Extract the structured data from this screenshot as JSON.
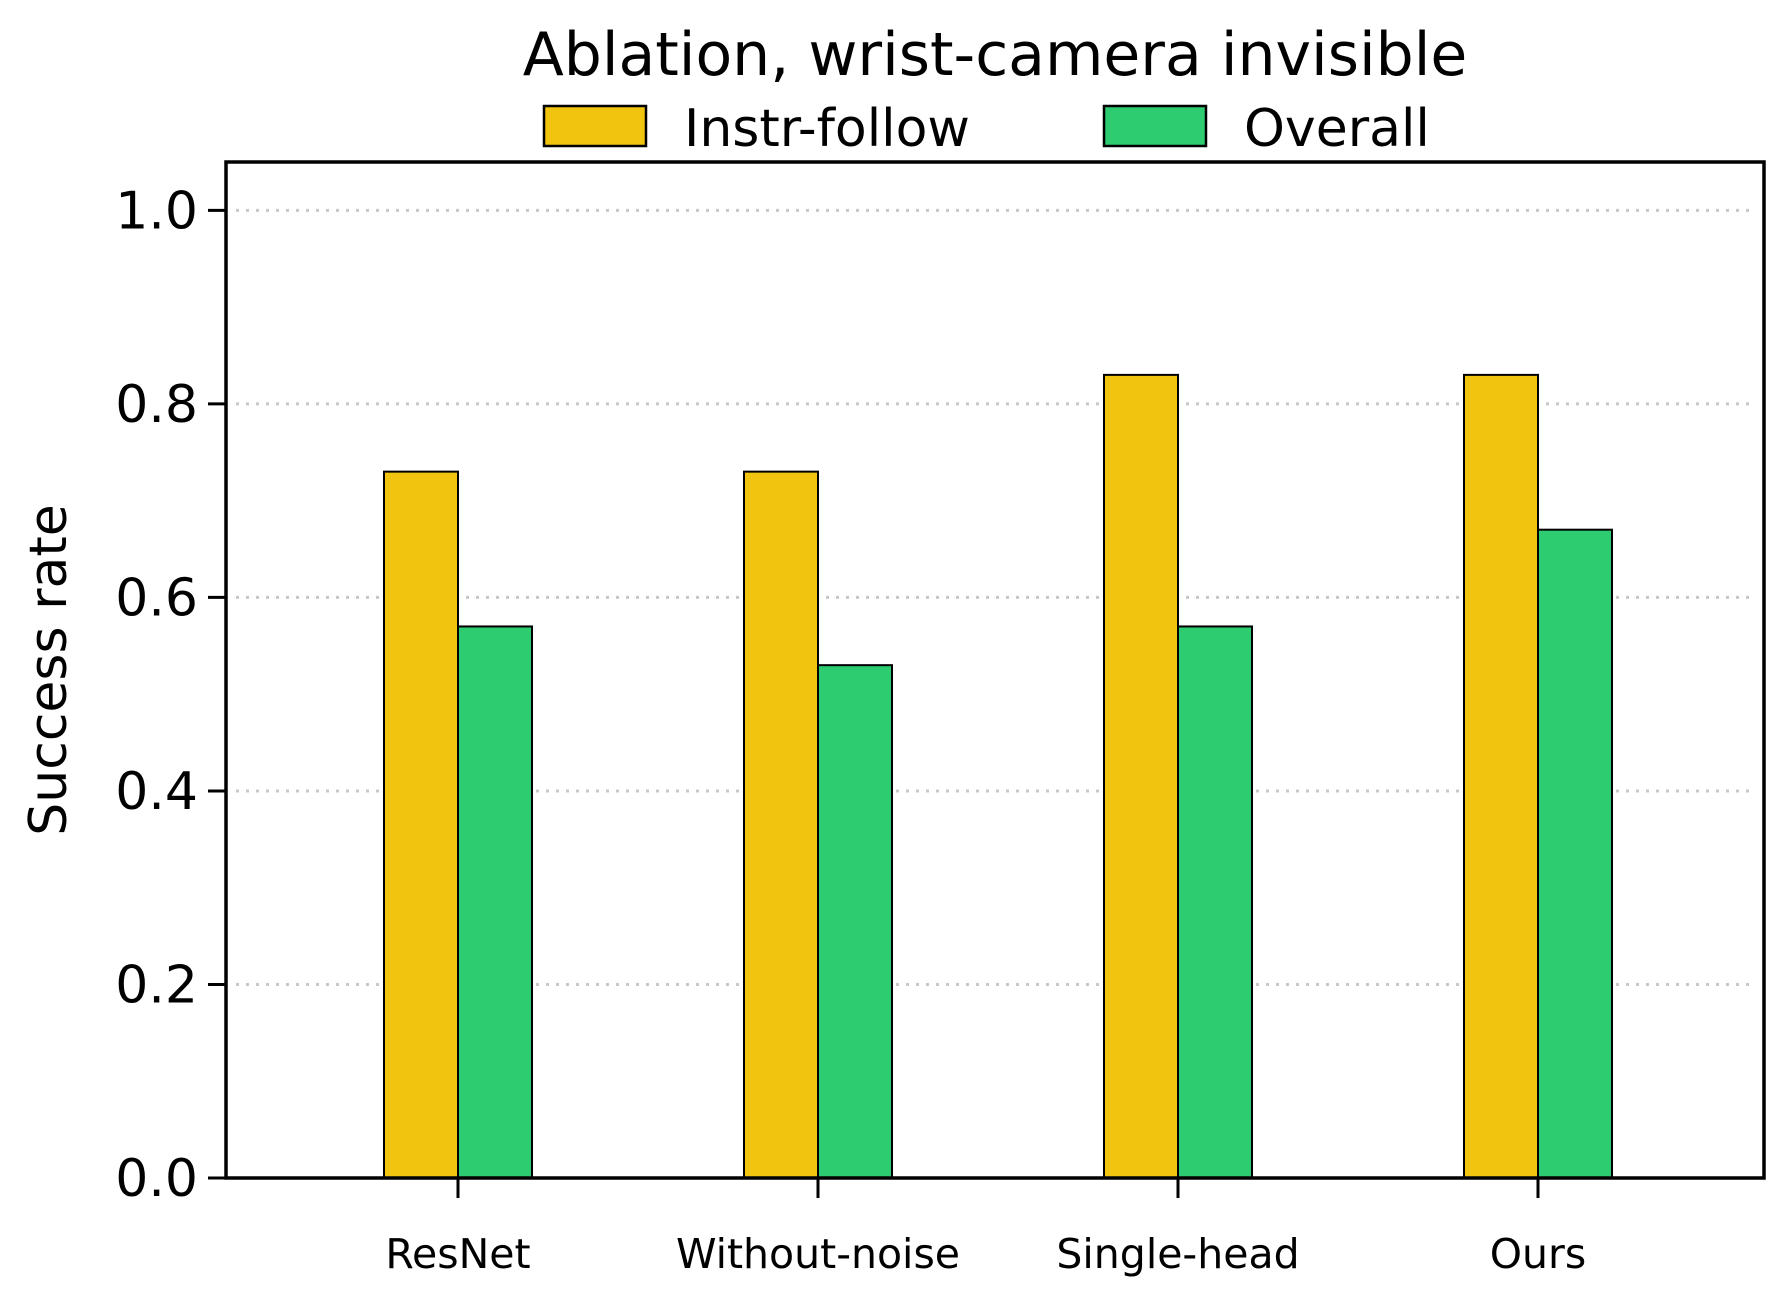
{
  "chart_data": {
    "type": "bar",
    "title": "Ablation, wrist-camera invisible",
    "xlabel": "",
    "ylabel": "Success rate",
    "categories": [
      "ResNet",
      "Without-noise",
      "Single-head",
      "Ours"
    ],
    "series": [
      {
        "name": "Instr-follow",
        "color": "#f1c40f",
        "values": [
          0.73,
          0.73,
          0.83,
          0.83
        ]
      },
      {
        "name": "Overall",
        "color": "#2ecc71",
        "values": [
          0.57,
          0.53,
          0.57,
          0.67
        ]
      }
    ],
    "ylim": [
      0,
      1.05
    ],
    "yticks": [
      "0.0",
      "0.2",
      "0.4",
      "0.6",
      "0.8",
      "1.0"
    ],
    "grid": "horizontal dotted",
    "legend_position": "top-center"
  }
}
